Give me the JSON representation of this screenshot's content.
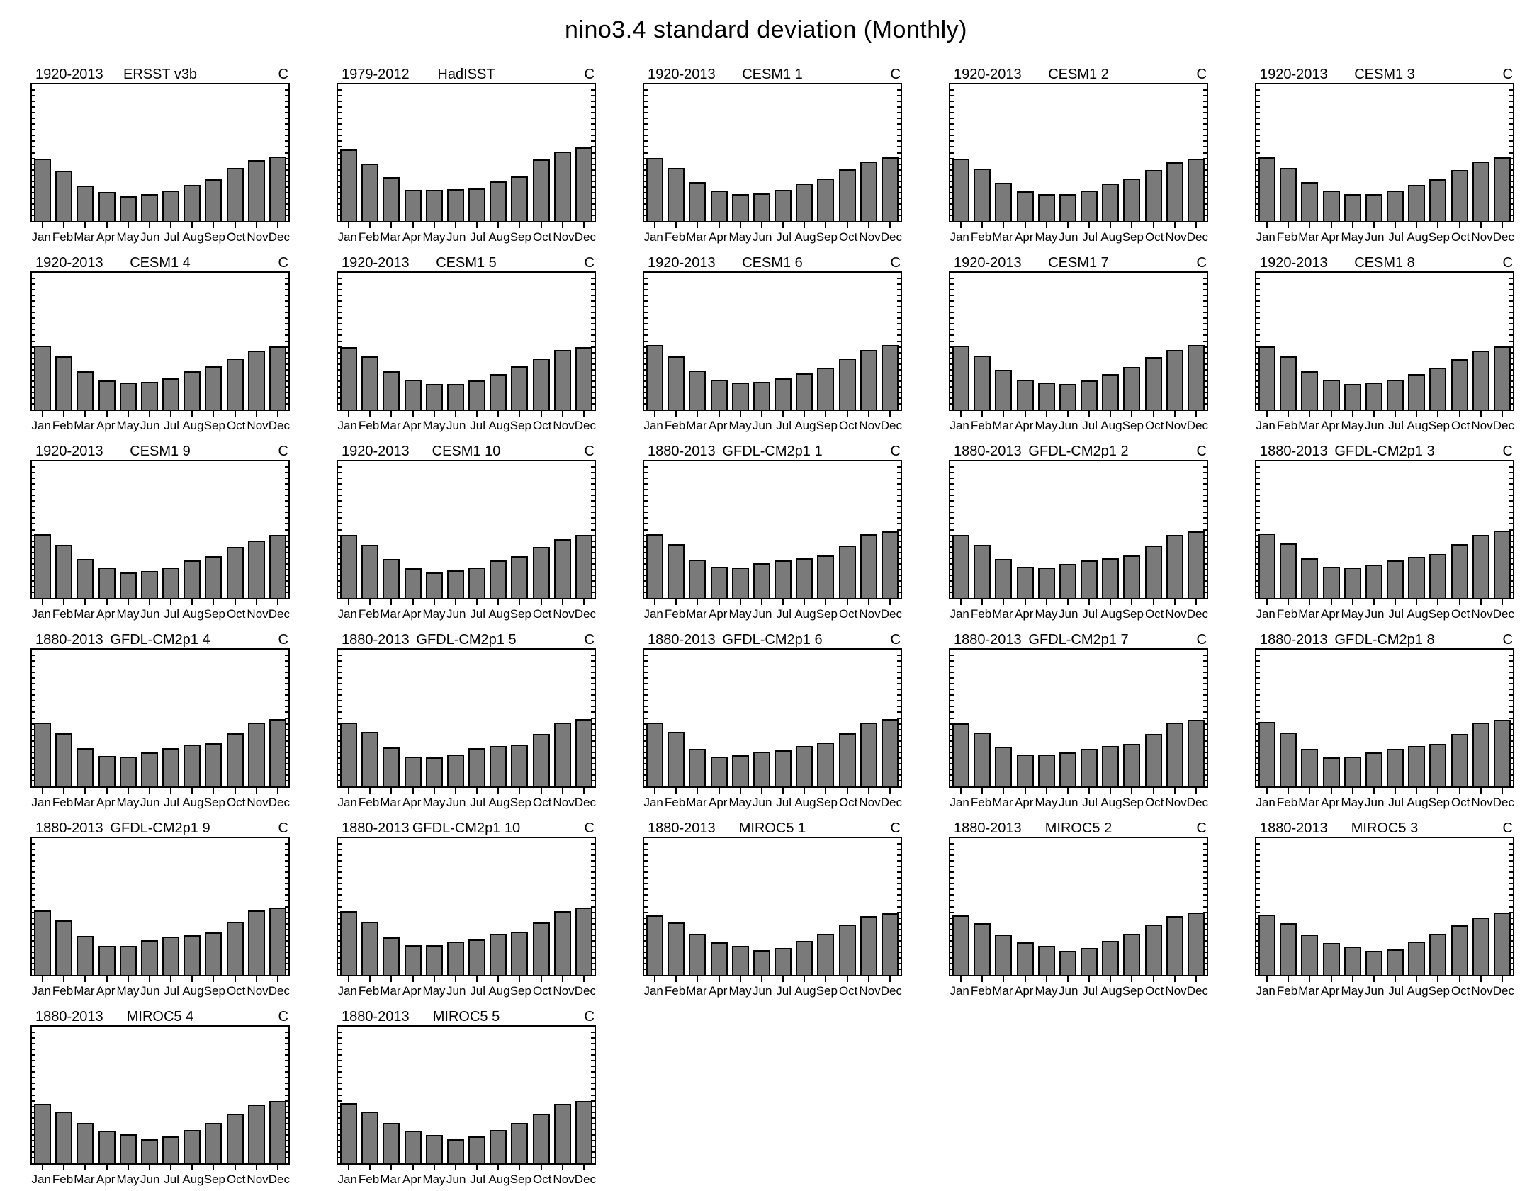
{
  "page_title": "nino3.4 standard deviation (Monthly)",
  "chart_data": {
    "type": "bar",
    "categories": [
      "Jan",
      "Feb",
      "Mar",
      "Apr",
      "May",
      "Jun",
      "Jul",
      "Aug",
      "Sep",
      "Oct",
      "Nov",
      "Dec"
    ],
    "unit_label": "C",
    "ylabel": "",
    "xlabel": "",
    "ylim": [
      0.2,
      2.0
    ],
    "yticks": [
      0.3,
      0.6,
      0.9,
      1.2,
      1.5,
      1.8
    ],
    "minor_tick_step": 0.075,
    "grid": false,
    "bar_color": "#7a7a7a",
    "bar_edge_color": "#000000",
    "panels": [
      {
        "period": "1920-2013",
        "title": "ERSST v3b",
        "values": [
          1.02,
          0.86,
          0.67,
          0.58,
          0.53,
          0.55,
          0.6,
          0.68,
          0.75,
          0.9,
          1.0,
          1.05
        ]
      },
      {
        "period": "1979-2012",
        "title": "HadISST",
        "values": [
          1.14,
          0.96,
          0.78,
          0.61,
          0.61,
          0.62,
          0.63,
          0.72,
          0.79,
          1.01,
          1.11,
          1.17
        ]
      },
      {
        "period": "1920-2013",
        "title": "CESM1 1",
        "values": [
          1.03,
          0.9,
          0.71,
          0.6,
          0.55,
          0.56,
          0.61,
          0.69,
          0.76,
          0.88,
          0.98,
          1.04
        ]
      },
      {
        "period": "1920-2013",
        "title": "CESM1 2",
        "values": [
          1.02,
          0.89,
          0.7,
          0.59,
          0.55,
          0.55,
          0.6,
          0.69,
          0.76,
          0.87,
          0.97,
          1.02
        ]
      },
      {
        "period": "1920-2013",
        "title": "CESM1 3",
        "values": [
          1.04,
          0.9,
          0.71,
          0.6,
          0.55,
          0.55,
          0.6,
          0.68,
          0.75,
          0.87,
          0.98,
          1.04
        ]
      },
      {
        "period": "1920-2013",
        "title": "CESM1 4",
        "values": [
          1.04,
          0.9,
          0.7,
          0.58,
          0.55,
          0.56,
          0.61,
          0.7,
          0.77,
          0.87,
          0.97,
          1.03
        ]
      },
      {
        "period": "1920-2013",
        "title": "CESM1 5",
        "values": [
          1.02,
          0.9,
          0.7,
          0.59,
          0.54,
          0.54,
          0.58,
          0.67,
          0.77,
          0.87,
          0.98,
          1.02
        ]
      },
      {
        "period": "1920-2013",
        "title": "CESM1 6",
        "values": [
          1.05,
          0.9,
          0.71,
          0.59,
          0.55,
          0.56,
          0.61,
          0.68,
          0.75,
          0.87,
          0.98,
          1.05
        ]
      },
      {
        "period": "1920-2013",
        "title": "CESM1 7",
        "values": [
          1.04,
          0.91,
          0.72,
          0.59,
          0.55,
          0.54,
          0.58,
          0.67,
          0.76,
          0.89,
          0.98,
          1.05
        ]
      },
      {
        "period": "1920-2013",
        "title": "CESM1 8",
        "values": [
          1.03,
          0.9,
          0.7,
          0.59,
          0.54,
          0.55,
          0.59,
          0.67,
          0.75,
          0.86,
          0.97,
          1.03
        ]
      },
      {
        "period": "1920-2013",
        "title": "CESM1 9",
        "values": [
          1.04,
          0.9,
          0.71,
          0.6,
          0.54,
          0.55,
          0.6,
          0.69,
          0.75,
          0.87,
          0.96,
          1.03
        ]
      },
      {
        "period": "1920-2013",
        "title": "CESM1 10",
        "values": [
          1.03,
          0.9,
          0.71,
          0.59,
          0.54,
          0.56,
          0.6,
          0.69,
          0.75,
          0.87,
          0.97,
          1.03
        ]
      },
      {
        "period": "1880-2013",
        "title": "GFDL-CM2p1 1",
        "values": [
          1.04,
          0.91,
          0.7,
          0.61,
          0.6,
          0.66,
          0.69,
          0.72,
          0.76,
          0.89,
          1.04,
          1.08
        ]
      },
      {
        "period": "1880-2013",
        "title": "GFDL-CM2p1 2",
        "values": [
          1.03,
          0.9,
          0.71,
          0.61,
          0.6,
          0.65,
          0.69,
          0.72,
          0.76,
          0.89,
          1.03,
          1.08
        ]
      },
      {
        "period": "1880-2013",
        "title": "GFDL-CM2p1 3",
        "values": [
          1.05,
          0.92,
          0.72,
          0.61,
          0.6,
          0.64,
          0.69,
          0.74,
          0.78,
          0.91,
          1.03,
          1.09
        ]
      },
      {
        "period": "1880-2013",
        "title": "GFDL-CM2p1 4",
        "values": [
          1.04,
          0.9,
          0.7,
          0.6,
          0.59,
          0.65,
          0.7,
          0.75,
          0.77,
          0.9,
          1.04,
          1.09
        ]
      },
      {
        "period": "1880-2013",
        "title": "GFDL-CM2p1 5",
        "values": [
          1.04,
          0.92,
          0.71,
          0.59,
          0.58,
          0.62,
          0.7,
          0.73,
          0.75,
          0.89,
          1.04,
          1.09
        ]
      },
      {
        "period": "1880-2013",
        "title": "GFDL-CM2p1 6",
        "values": [
          1.04,
          0.92,
          0.69,
          0.59,
          0.61,
          0.66,
          0.68,
          0.73,
          0.78,
          0.9,
          1.04,
          1.09
        ]
      },
      {
        "period": "1880-2013",
        "title": "GFDL-CM2p1 7",
        "values": [
          1.03,
          0.91,
          0.72,
          0.62,
          0.62,
          0.65,
          0.69,
          0.73,
          0.76,
          0.89,
          1.04,
          1.08
        ]
      },
      {
        "period": "1880-2013",
        "title": "GFDL-CM2p1 8",
        "values": [
          1.05,
          0.91,
          0.69,
          0.58,
          0.59,
          0.65,
          0.69,
          0.73,
          0.76,
          0.89,
          1.04,
          1.08
        ]
      },
      {
        "period": "1880-2013",
        "title": "GFDL-CM2p1 9",
        "values": [
          1.05,
          0.92,
          0.71,
          0.58,
          0.58,
          0.66,
          0.7,
          0.72,
          0.76,
          0.9,
          1.05,
          1.09
        ]
      },
      {
        "period": "1880-2013",
        "title": "GFDL-CM2p1 10",
        "values": [
          1.04,
          0.9,
          0.69,
          0.59,
          0.59,
          0.64,
          0.67,
          0.74,
          0.77,
          0.89,
          1.04,
          1.09
        ]
      },
      {
        "period": "1880-2013",
        "title": "MIROC5 1",
        "values": [
          0.98,
          0.89,
          0.74,
          0.63,
          0.58,
          0.53,
          0.55,
          0.65,
          0.74,
          0.86,
          0.97,
          1.01
        ]
      },
      {
        "period": "1880-2013",
        "title": "MIROC5 2",
        "values": [
          0.98,
          0.88,
          0.73,
          0.63,
          0.58,
          0.52,
          0.55,
          0.65,
          0.74,
          0.86,
          0.97,
          1.02
        ]
      },
      {
        "period": "1880-2013",
        "title": "MIROC5 3",
        "values": [
          0.99,
          0.88,
          0.73,
          0.62,
          0.57,
          0.52,
          0.54,
          0.64,
          0.74,
          0.85,
          0.96,
          1.02
        ]
      },
      {
        "period": "1880-2013",
        "title": "MIROC5 4",
        "values": [
          0.98,
          0.88,
          0.73,
          0.63,
          0.58,
          0.52,
          0.55,
          0.64,
          0.73,
          0.85,
          0.97,
          1.02
        ]
      },
      {
        "period": "1880-2013",
        "title": "MIROC5 5",
        "values": [
          0.99,
          0.88,
          0.73,
          0.63,
          0.57,
          0.52,
          0.55,
          0.64,
          0.73,
          0.85,
          0.98,
          1.02
        ]
      }
    ]
  }
}
